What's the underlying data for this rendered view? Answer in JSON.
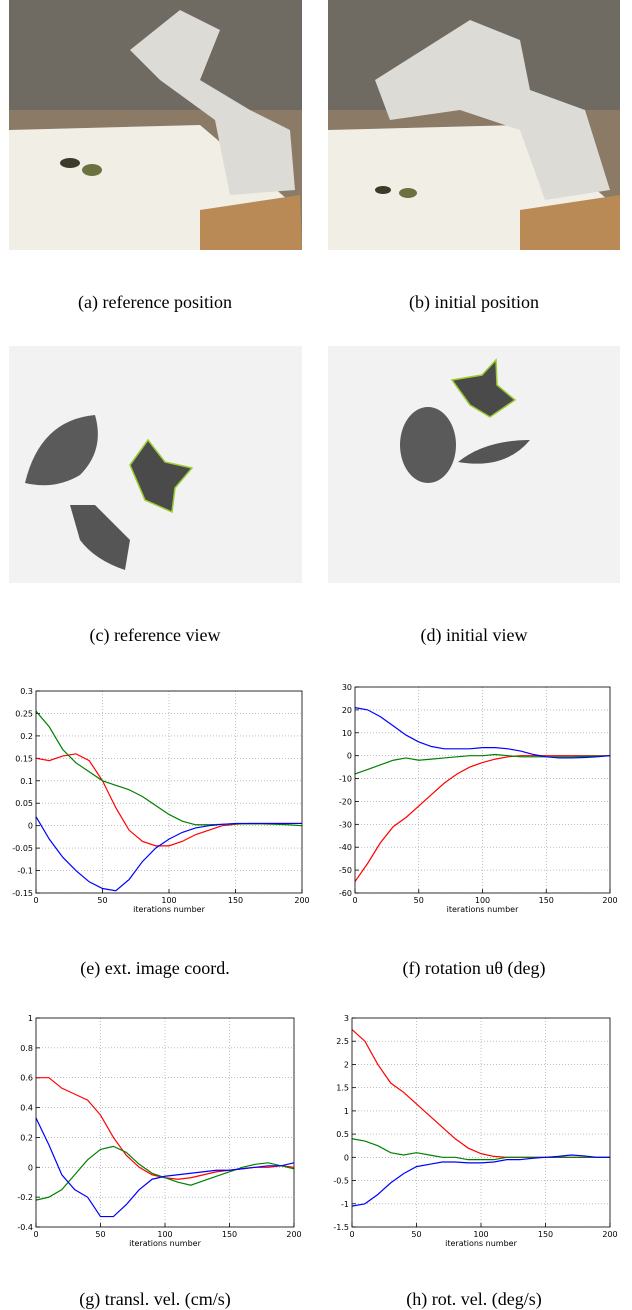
{
  "photos": [
    {
      "caption": "(a) reference position"
    },
    {
      "caption": "(b) initial position"
    },
    {
      "caption": "(c) reference view"
    },
    {
      "caption": "(d) initial view"
    }
  ],
  "chart_data": [
    {
      "type": "line",
      "caption": "(e) ext. image coord.",
      "xlabel": "iterations number",
      "x": [
        0,
        10,
        20,
        30,
        40,
        50,
        60,
        70,
        80,
        90,
        100,
        110,
        120,
        130,
        140,
        150,
        160,
        170,
        180,
        190,
        200
      ],
      "xlim": [
        0,
        200
      ],
      "xticks": [
        0,
        50,
        100,
        150,
        200
      ],
      "ylim": [
        -0.15,
        0.3
      ],
      "yticks": [
        -0.15,
        -0.1,
        -0.05,
        0,
        0.05,
        0.1,
        0.15,
        0.2,
        0.25,
        0.3
      ],
      "grid": true,
      "series": [
        {
          "color": "#ff0000",
          "values": [
            0.15,
            0.145,
            0.155,
            0.16,
            0.145,
            0.1,
            0.04,
            -0.01,
            -0.035,
            -0.045,
            -0.045,
            -0.035,
            -0.02,
            -0.01,
            0,
            0.003,
            0.005,
            0.005,
            0.005,
            0.005,
            0.005
          ]
        },
        {
          "color": "#008000",
          "values": [
            0.255,
            0.22,
            0.17,
            0.14,
            0.12,
            0.1,
            0.09,
            0.08,
            0.065,
            0.045,
            0.025,
            0.01,
            0.002,
            0.002,
            0.003,
            0.004,
            0.004,
            0.004,
            0.003,
            0.002,
            0
          ]
        },
        {
          "color": "#0000ff",
          "values": [
            0.02,
            -0.03,
            -0.07,
            -0.1,
            -0.125,
            -0.14,
            -0.145,
            -0.12,
            -0.08,
            -0.05,
            -0.03,
            -0.015,
            -0.005,
            0,
            0.003,
            0.005,
            0.005,
            0.005,
            0.005,
            0.005,
            0.005
          ]
        }
      ]
    },
    {
      "type": "line",
      "caption": "(f) rotation uθ (deg)",
      "xlabel": "iterations number",
      "x": [
        0,
        10,
        20,
        30,
        40,
        50,
        60,
        70,
        80,
        90,
        100,
        110,
        120,
        130,
        140,
        150,
        160,
        170,
        180,
        190,
        200
      ],
      "xlim": [
        0,
        200
      ],
      "xticks": [
        0,
        50,
        100,
        150,
        200
      ],
      "ylim": [
        -60,
        30
      ],
      "yticks": [
        -60,
        -50,
        -40,
        -30,
        -20,
        -10,
        0,
        10,
        20,
        30
      ],
      "grid": true,
      "series": [
        {
          "color": "#ff0000",
          "values": [
            -55,
            -47,
            -38,
            -31,
            -27,
            -22,
            -17,
            -12,
            -8,
            -5,
            -3,
            -1.5,
            -0.5,
            0,
            0,
            0,
            0,
            0,
            0,
            0,
            0
          ]
        },
        {
          "color": "#008000",
          "values": [
            -8,
            -6,
            -4,
            -2,
            -1,
            -2,
            -1.5,
            -1,
            -0.5,
            0,
            0,
            0.5,
            0,
            -0.5,
            -0.5,
            -0.5,
            -0.5,
            -0.5,
            -0.3,
            -0.2,
            0
          ]
        },
        {
          "color": "#0000ff",
          "values": [
            21,
            20,
            17,
            13,
            9,
            6,
            4,
            3,
            3,
            3,
            3.5,
            3.5,
            3,
            2,
            0.5,
            -0.5,
            -1,
            -1,
            -0.8,
            -0.5,
            0
          ]
        }
      ]
    },
    {
      "type": "line",
      "caption": "(g) transl. vel. (cm/s)",
      "xlabel": "iterations number",
      "x": [
        0,
        10,
        20,
        30,
        40,
        50,
        60,
        70,
        80,
        90,
        100,
        110,
        120,
        130,
        140,
        150,
        160,
        170,
        180,
        190,
        200
      ],
      "xlim": [
        0,
        200
      ],
      "xticks": [
        0,
        50,
        100,
        150,
        200
      ],
      "ylim": [
        -0.4,
        1
      ],
      "yticks": [
        -0.4,
        -0.2,
        0,
        0.2,
        0.4,
        0.6,
        0.8,
        1
      ],
      "grid": true,
      "series": [
        {
          "color": "#ff0000",
          "values": [
            0.6,
            0.6,
            0.53,
            0.49,
            0.45,
            0.35,
            0.2,
            0.08,
            0,
            -0.05,
            -0.07,
            -0.08,
            -0.07,
            -0.05,
            -0.03,
            -0.02,
            -0.01,
            0,
            0,
            0.01,
            0
          ]
        },
        {
          "color": "#008000",
          "values": [
            -0.22,
            -0.2,
            -0.15,
            -0.05,
            0.05,
            0.12,
            0.14,
            0.1,
            0.02,
            -0.04,
            -0.07,
            -0.1,
            -0.12,
            -0.09,
            -0.06,
            -0.03,
            0,
            0.02,
            0.03,
            0.01,
            -0.01
          ]
        },
        {
          "color": "#0000ff",
          "values": [
            0.33,
            0.15,
            -0.05,
            -0.15,
            -0.2,
            -0.33,
            -0.33,
            -0.25,
            -0.15,
            -0.08,
            -0.06,
            -0.05,
            -0.04,
            -0.03,
            -0.02,
            -0.02,
            -0.01,
            0,
            0.01,
            0.01,
            0.03
          ]
        }
      ]
    },
    {
      "type": "line",
      "caption": "(h) rot. vel. (deg/s)",
      "xlabel": "iterations number",
      "x": [
        0,
        10,
        20,
        30,
        40,
        50,
        60,
        70,
        80,
        90,
        100,
        110,
        120,
        130,
        140,
        150,
        160,
        170,
        180,
        190,
        200
      ],
      "xlim": [
        0,
        200
      ],
      "xticks": [
        0,
        50,
        100,
        150,
        200
      ],
      "ylim": [
        -1.5,
        3
      ],
      "yticks": [
        -1.5,
        -1,
        -0.5,
        0,
        0.5,
        1,
        1.5,
        2,
        2.5,
        3
      ],
      "grid": true,
      "series": [
        {
          "color": "#ff0000",
          "values": [
            2.75,
            2.5,
            2,
            1.6,
            1.4,
            1.15,
            0.9,
            0.65,
            0.4,
            0.2,
            0.08,
            0.02,
            0,
            0,
            0,
            0,
            0,
            0,
            0,
            0,
            0
          ]
        },
        {
          "color": "#008000",
          "values": [
            0.4,
            0.35,
            0.25,
            0.1,
            0.05,
            0.1,
            0.05,
            0,
            0,
            -0.05,
            -0.05,
            -0.05,
            0,
            0,
            0,
            0,
            0,
            0,
            0,
            0,
            0
          ]
        },
        {
          "color": "#0000ff",
          "values": [
            -1.05,
            -1,
            -0.8,
            -0.55,
            -0.35,
            -0.2,
            -0.15,
            -0.1,
            -0.1,
            -0.12,
            -0.12,
            -0.1,
            -0.05,
            -0.05,
            -0.02,
            0,
            0.02,
            0.05,
            0.03,
            0,
            0
          ]
        }
      ]
    }
  ]
}
